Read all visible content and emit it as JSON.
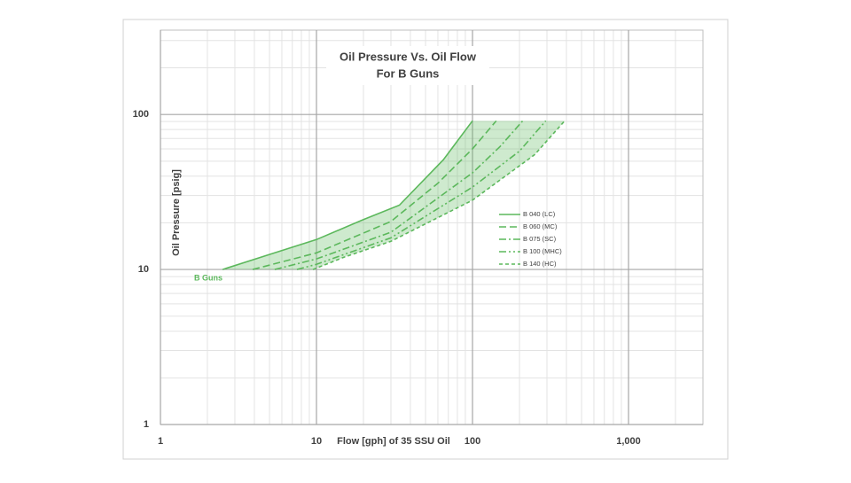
{
  "chart_data": {
    "type": "line",
    "title": "Oil Pressure Vs. Oil Flow",
    "subtitle": "For B Guns",
    "x_label": "Flow [gph] of 35 SSU Oil",
    "y_label": "Oil Pressure [psig]",
    "log_x": true,
    "log_y": true,
    "grid": true,
    "legend": "right",
    "xlim": [
      1,
      3000
    ],
    "ylim": [
      1,
      350
    ],
    "xticks": [
      1,
      10,
      100,
      {
        "value": 1000,
        "label": "1,000"
      }
    ],
    "yticks": [
      1,
      10,
      100
    ],
    "annotation": "B Guns",
    "fill_color": "#5cb85c",
    "series": [
      {
        "name": "B 040 (LC)",
        "color": "#5cb85c",
        "dash": "solid",
        "x": [
          2.5,
          5,
          10,
          20,
          34,
          65,
          100
        ],
        "values": [
          10,
          12.5,
          15.6,
          21,
          26,
          51,
          91
        ]
      },
      {
        "name": "B 060 (MC)",
        "color": "#5cb85c",
        "dash": "dash",
        "x": [
          3.9,
          10,
          30,
          60,
          100,
          142
        ],
        "values": [
          10,
          12.8,
          20.4,
          36,
          60,
          91
        ]
      },
      {
        "name": "B 075 (SC)",
        "color": "#5cb85c",
        "dash": "dashdot",
        "x": [
          5.4,
          10,
          30,
          100,
          150,
          210
        ],
        "values": [
          10,
          11.7,
          17.4,
          42,
          62,
          91
        ]
      },
      {
        "name": "B 100 (MHC)",
        "color": "#5cb85c",
        "dash": "dashdotdot",
        "x": [
          7.5,
          10,
          30,
          100,
          200,
          295
        ],
        "values": [
          10,
          10.8,
          16,
          34,
          58,
          91
        ]
      },
      {
        "name": "B 140 (HC)",
        "color": "#5cb85c",
        "dash": "dot",
        "x": [
          9.5,
          15,
          30,
          100,
          250,
          390
        ],
        "values": [
          10,
          12,
          15.2,
          28,
          55,
          91
        ]
      }
    ]
  }
}
